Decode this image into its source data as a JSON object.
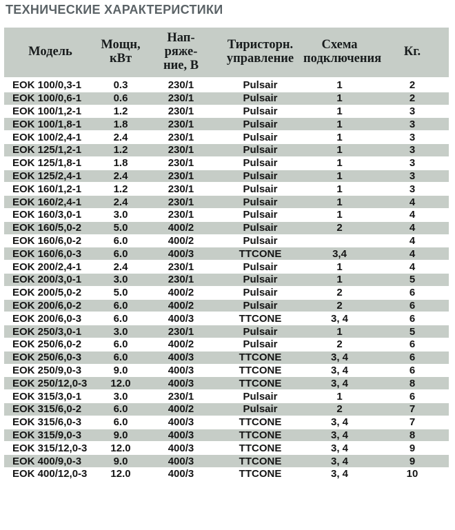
{
  "page": {
    "title": "ТЕХНИЧЕСКИЕ ХАРАКТЕРИСТИКИ"
  },
  "colors": {
    "band": "#c6cdc7",
    "title_text": "#5b6367",
    "body_text": "#151515",
    "page_bg": "#ffffff"
  },
  "table": {
    "column_keys": [
      "model",
      "power",
      "voltage",
      "control",
      "scheme",
      "weight"
    ],
    "headers": [
      "Модель",
      "Мощн,\nкВт",
      "Нап-\nряже-\nние, В",
      "Тиристорн.\nуправление",
      "Схема\nподключения",
      "Кг."
    ],
    "rows": [
      [
        "EOK 100/0,3-1",
        "0.3",
        "230/1",
        "Pulsair",
        "1",
        "2"
      ],
      [
        "EOK 100/0,6-1",
        "0.6",
        "230/1",
        "Pulsair",
        "1",
        "2"
      ],
      [
        "EOK 100/1,2-1",
        "1.2",
        "230/1",
        "Pulsair",
        "1",
        "3"
      ],
      [
        "EOK 100/1,8-1",
        "1.8",
        "230/1",
        "Pulsair",
        "1",
        "3"
      ],
      [
        "EOK 100/2,4-1",
        "2.4",
        "230/1",
        "Pulsair",
        "1",
        "3"
      ],
      [
        "EOK 125/1,2-1",
        "1.2",
        "230/1",
        "Pulsair",
        "1",
        "3"
      ],
      [
        "EOK 125/1,8-1",
        "1.8",
        "230/1",
        "Pulsair",
        "1",
        "3"
      ],
      [
        "EOK 125/2,4-1",
        "2.4",
        "230/1",
        "Pulsair",
        "1",
        "3"
      ],
      [
        "EOK 160/1,2-1",
        "1.2",
        "230/1",
        "Pulsair",
        "1",
        "3"
      ],
      [
        "EOK 160/2,4-1",
        "2.4",
        "230/1",
        "Pulsair",
        "1",
        "4"
      ],
      [
        "EOK 160/3,0-1",
        "3.0",
        "230/1",
        "Pulsair",
        "1",
        "4"
      ],
      [
        "EOK 160/5,0-2",
        "5.0",
        "400/2",
        "Pulsair",
        "2",
        "4"
      ],
      [
        "EOK 160/6,0-2",
        "6.0",
        "400/2",
        "Pulsair",
        "",
        "4"
      ],
      [
        "EOK 160/6,0-3",
        "6.0",
        "400/3",
        "TTCONE",
        "3,4",
        "4"
      ],
      [
        "EOK 200/2,4-1",
        "2.4",
        "230/1",
        "Pulsair",
        "1",
        "4"
      ],
      [
        "EOK 200/3,0-1",
        "3.0",
        "230/1",
        "Pulsair",
        "1",
        "5"
      ],
      [
        "EOK 200/5,0-2",
        "5.0",
        "400/2",
        "Pulsair",
        "2",
        "6"
      ],
      [
        "EOK 200/6,0-2",
        "6.0",
        "400/2",
        "Pulsair",
        "2",
        "6"
      ],
      [
        "EOK 200/6,0-3",
        "6.0",
        "400/3",
        "TTCONE",
        "3, 4",
        "6"
      ],
      [
        "EOK 250/3,0-1",
        "3.0",
        "230/1",
        "Pulsair",
        "1",
        "5"
      ],
      [
        "EOK 250/6,0-2",
        "6.0",
        "400/2",
        "Pulsair",
        "2",
        "6"
      ],
      [
        "EOK 250/6,0-3",
        "6.0",
        "400/3",
        "TTCONE",
        "3, 4",
        "6"
      ],
      [
        "EOK 250/9,0-3",
        "9.0",
        "400/3",
        "TTCONE",
        "3, 4",
        "6"
      ],
      [
        "EOK 250/12,0-3",
        "12.0",
        "400/3",
        "TTCONE",
        "3, 4",
        "8"
      ],
      [
        "EOK 315/3,0-1",
        "3.0",
        "230/1",
        "Pulsair",
        "1",
        "6"
      ],
      [
        "EOK 315/6,0-2",
        "6.0",
        "400/2",
        "Pulsair",
        "2",
        "7"
      ],
      [
        "EOK 315/6,0-3",
        "6.0",
        "400/3",
        "TTCONE",
        "3, 4",
        "7"
      ],
      [
        "EOK 315/9,0-3",
        "9.0",
        "400/3",
        "TTCONE",
        "3, 4",
        "8"
      ],
      [
        "EOK 315/12,0-3",
        "12.0",
        "400/3",
        "TTCONE",
        "3, 4",
        "9"
      ],
      [
        "EOK 400/9,0-3",
        "9.0",
        "400/3",
        "TTCONE",
        "3, 4",
        "9"
      ],
      [
        "EOK 400/12,0-3",
        "12.0",
        "400/3",
        "TTCONE",
        "3, 4",
        "10"
      ]
    ]
  }
}
